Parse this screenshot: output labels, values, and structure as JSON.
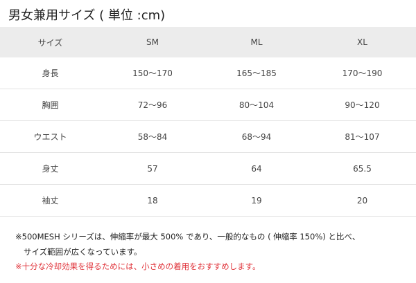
{
  "title": "男女兼用サイズ ( 単位 :cm)",
  "table": {
    "headers": [
      "サイズ",
      "SM",
      "ML",
      "XL"
    ],
    "rows": [
      [
        "身長",
        "150〜170",
        "165〜185",
        "170〜190"
      ],
      [
        "胸囲",
        "72〜96",
        "80〜104",
        "90〜120"
      ],
      [
        "ウエスト",
        "58〜84",
        "68〜94",
        "81〜107"
      ],
      [
        "身丈",
        "57",
        "64",
        "65.5"
      ],
      [
        "袖丈",
        "18",
        "19",
        "20"
      ]
    ]
  },
  "notes": {
    "line1": "※500MESH シリーズは、伸縮率が最大 500% であり、一般的なもの ( 伸縮率 150%) と比べ、",
    "line2": "サイズ範囲が広くなっています。",
    "warning": "※十分な冷却効果を得るためには、小さめの着用をおすすめします。"
  },
  "colors": {
    "warning": "#e0333a",
    "header_bg": "#ececec"
  }
}
